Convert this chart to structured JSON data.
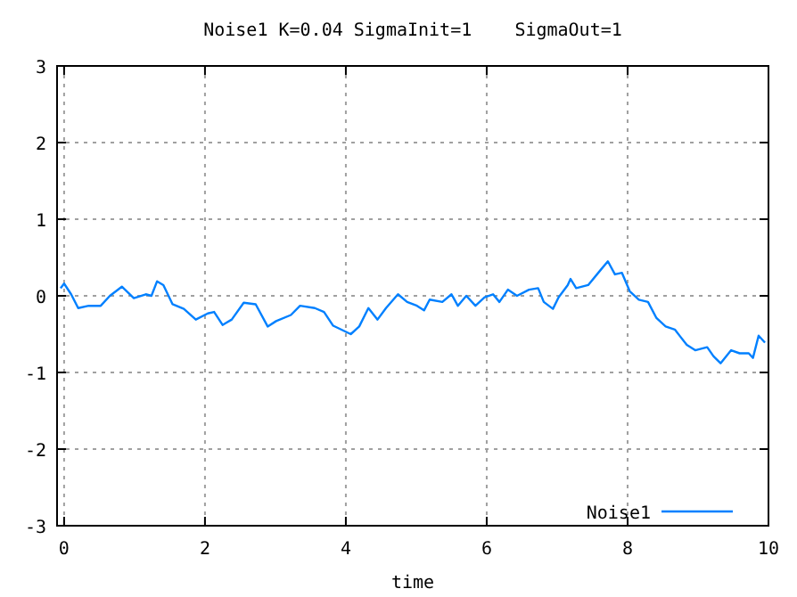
{
  "chart_data": {
    "type": "line",
    "title": "Noise1 K=0.04 SigmaInit=1    SigmaOut=1",
    "xlabel": "time",
    "xlim": [
      -0.1,
      10
    ],
    "xticks": [
      0,
      2,
      4,
      6,
      8,
      10
    ],
    "ylim": [
      -3,
      3
    ],
    "yticks": [
      -3,
      -2,
      -1,
      0,
      1,
      2,
      3
    ],
    "grid": true,
    "legend": "bottom right",
    "series": [
      {
        "name": "Noise1",
        "color": "#0080ff",
        "x": [
          -0.05,
          0,
          0.1,
          0.2,
          0.35,
          0.52,
          0.65,
          0.82,
          0.99,
          1.16,
          1.24,
          1.32,
          1.41,
          1.54,
          1.7,
          1.87,
          2.04,
          2.13,
          2.25,
          2.38,
          2.55,
          2.72,
          2.89,
          3.01,
          3.22,
          3.35,
          3.56,
          3.69,
          3.82,
          4.07,
          4.19,
          4.32,
          4.45,
          4.57,
          4.74,
          4.87,
          5.01,
          5.11,
          5.19,
          5.37,
          5.5,
          5.59,
          5.71,
          5.84,
          5.97,
          6.09,
          6.18,
          6.3,
          6.43,
          6.6,
          6.73,
          6.81,
          6.94,
          7.02,
          7.15,
          7.19,
          7.27,
          7.44,
          7.61,
          7.72,
          7.82,
          7.92,
          8.03,
          8.16,
          8.29,
          8.41,
          8.54,
          8.67,
          8.84,
          8.96,
          9.13,
          9.22,
          9.32,
          9.47,
          9.59,
          9.72,
          9.78,
          9.86,
          9.95
        ],
        "values": [
          0.1,
          0.16,
          0.02,
          -0.16,
          -0.13,
          -0.13,
          0,
          0.12,
          -0.03,
          0.02,
          0,
          0.19,
          0.14,
          -0.11,
          -0.17,
          -0.31,
          -0.23,
          -0.21,
          -0.38,
          -0.31,
          -0.09,
          -0.11,
          -0.4,
          -0.33,
          -0.25,
          -0.13,
          -0.16,
          -0.21,
          -0.39,
          -0.5,
          -0.4,
          -0.16,
          -0.31,
          -0.16,
          0.02,
          -0.08,
          -0.13,
          -0.19,
          -0.05,
          -0.08,
          0.02,
          -0.13,
          0,
          -0.13,
          -0.02,
          0.02,
          -0.08,
          0.08,
          0,
          0.08,
          0.1,
          -0.08,
          -0.17,
          -0.02,
          0.14,
          0.22,
          0.1,
          0.14,
          0.33,
          0.45,
          0.28,
          0.3,
          0.06,
          -0.05,
          -0.08,
          -0.29,
          -0.4,
          -0.44,
          -0.64,
          -0.71,
          -0.67,
          -0.79,
          -0.88,
          -0.71,
          -0.75,
          -0.75,
          -0.81,
          -0.52,
          -0.61
        ]
      }
    ]
  }
}
